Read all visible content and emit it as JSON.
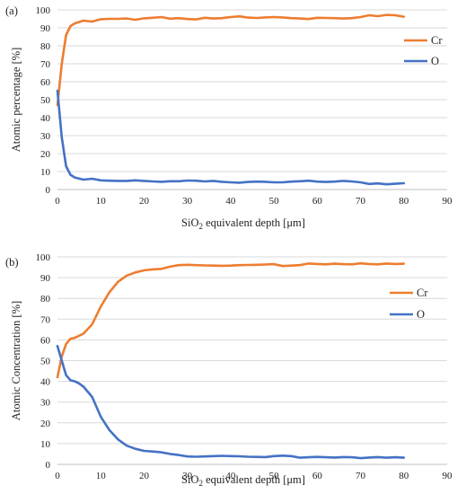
{
  "chart_data": [
    {
      "type": "line",
      "panel_label": "(a)",
      "ylabel": "Atomic percentage [%]",
      "xlabel_prefix": "SiO",
      "xlabel_sub": "2",
      "xlabel_suffix": " equivalent depth [μm]",
      "xlim": [
        0,
        90
      ],
      "ylim": [
        0,
        100
      ],
      "xticks": [
        0,
        10,
        20,
        30,
        40,
        50,
        60,
        70,
        80,
        90
      ],
      "yticks": [
        0,
        10,
        20,
        30,
        40,
        50,
        60,
        70,
        80,
        90,
        100
      ],
      "grid": true,
      "legend_position": "right",
      "series": [
        {
          "name": "Cr",
          "color": "#ED7D31",
          "x": [
            0,
            1,
            2,
            3,
            4,
            6,
            8,
            10,
            12,
            14,
            16,
            18,
            20,
            22,
            24,
            26,
            28,
            30,
            32,
            34,
            36,
            38,
            40,
            42,
            44,
            46,
            48,
            50,
            52,
            54,
            56,
            58,
            60,
            62,
            64,
            66,
            68,
            70,
            72,
            74,
            76,
            78,
            80
          ],
          "y": [
            47,
            70,
            86,
            91,
            92.5,
            94,
            93.5,
            94.8,
            95,
            95,
            95.2,
            94.5,
            95.3,
            95.6,
            96,
            95.1,
            95.4,
            94.9,
            94.7,
            95.6,
            95.2,
            95.4,
            96,
            96.4,
            95.7,
            95.5,
            95.8,
            96,
            95.8,
            95.4,
            95.2,
            94.9,
            95.6,
            95.5,
            95.4,
            95.2,
            95.4,
            96,
            97,
            96.5,
            97.2,
            97,
            96.2
          ]
        },
        {
          "name": "O",
          "color": "#4472C4",
          "x": [
            0,
            1,
            2,
            3,
            4,
            6,
            8,
            10,
            12,
            14,
            16,
            18,
            20,
            22,
            24,
            26,
            28,
            30,
            32,
            34,
            36,
            38,
            40,
            42,
            44,
            46,
            48,
            50,
            52,
            54,
            56,
            58,
            60,
            62,
            64,
            66,
            68,
            70,
            72,
            74,
            76,
            78,
            80
          ],
          "y": [
            55,
            29,
            13,
            8.2,
            6.7,
            5.5,
            6,
            5.1,
            4.9,
            4.8,
            4.8,
            5.1,
            4.8,
            4.5,
            4.3,
            4.6,
            4.6,
            5,
            4.9,
            4.5,
            4.8,
            4.3,
            4,
            3.8,
            4.2,
            4.4,
            4.3,
            4,
            4,
            4.4,
            4.6,
            4.9,
            4.4,
            4.2,
            4.4,
            4.8,
            4.5,
            4,
            3.1,
            3.4,
            2.9,
            3.2,
            3.5
          ]
        }
      ]
    },
    {
      "type": "line",
      "panel_label": "(b)",
      "ylabel": "Atomic Concentration [%]",
      "xlabel_prefix": "SiO",
      "xlabel_sub": "2",
      "xlabel_suffix": " equivalent depth [μm]",
      "xlim": [
        0,
        90
      ],
      "ylim": [
        0,
        100
      ],
      "xticks": [
        0,
        10,
        20,
        30,
        40,
        50,
        60,
        70,
        80,
        90
      ],
      "yticks": [
        0,
        10,
        20,
        30,
        40,
        50,
        60,
        70,
        80,
        90,
        100
      ],
      "grid": true,
      "legend_position": "right",
      "series": [
        {
          "name": "Cr",
          "color": "#ED7D31",
          "x": [
            0,
            1,
            2,
            3,
            4,
            5,
            6,
            8,
            10,
            12,
            14,
            16,
            18,
            20,
            22,
            24,
            26,
            28,
            30,
            32,
            34,
            36,
            38,
            40,
            42,
            44,
            46,
            48,
            50,
            52,
            54,
            56,
            58,
            60,
            62,
            64,
            66,
            68,
            70,
            72,
            74,
            76,
            78,
            80
          ],
          "y": [
            42,
            52,
            58,
            60.5,
            61,
            62,
            63,
            67.5,
            76,
            83,
            88,
            91,
            92.5,
            93.5,
            94,
            94.2,
            95.3,
            96,
            96.2,
            96,
            95.9,
            95.8,
            95.7,
            95.8,
            96,
            96.1,
            96.2,
            96.3,
            96.5,
            95.6,
            95.8,
            96,
            96.8,
            96.6,
            96.4,
            96.7,
            96.5,
            96.4,
            96.9,
            96.6,
            96.4,
            96.8,
            96.6,
            96.7
          ]
        },
        {
          "name": "O",
          "color": "#4472C4",
          "x": [
            0,
            1,
            2,
            3,
            4,
            5,
            6,
            8,
            10,
            12,
            14,
            16,
            18,
            20,
            22,
            24,
            26,
            28,
            30,
            32,
            34,
            36,
            38,
            40,
            42,
            44,
            46,
            48,
            50,
            52,
            54,
            56,
            58,
            60,
            62,
            64,
            66,
            68,
            70,
            72,
            74,
            76,
            78,
            80
          ],
          "y": [
            57,
            50,
            43,
            40.5,
            40,
            39,
            37.5,
            32.5,
            23,
            16.5,
            12,
            9,
            7.5,
            6.5,
            6.2,
            5.8,
            5,
            4.5,
            3.8,
            3.7,
            3.8,
            4,
            4.1,
            4,
            3.9,
            3.7,
            3.6,
            3.5,
            4,
            4.2,
            4,
            3.2,
            3.4,
            3.6,
            3.4,
            3.3,
            3.5,
            3.4,
            3,
            3.3,
            3.5,
            3.2,
            3.4,
            3.2
          ]
        }
      ]
    }
  ]
}
